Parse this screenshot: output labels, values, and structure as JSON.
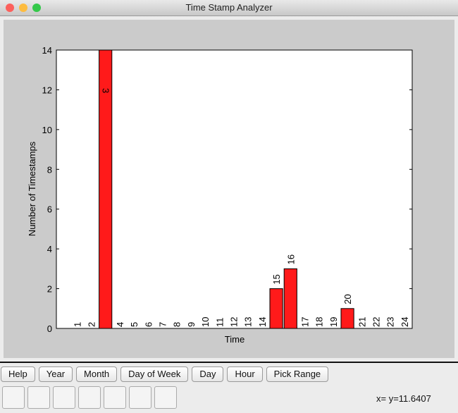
{
  "window": {
    "title": "Time Stamp Analyzer"
  },
  "chart_data": {
    "type": "bar",
    "xlabel": "Time",
    "ylabel": "Number of Timestamps",
    "x": [
      1,
      2,
      3,
      4,
      5,
      6,
      7,
      8,
      9,
      10,
      11,
      12,
      13,
      14,
      15,
      16,
      17,
      18,
      19,
      20,
      21,
      22,
      23,
      24
    ],
    "values": [
      0,
      0,
      14,
      0,
      0,
      0,
      0,
      0,
      0,
      0,
      0,
      0,
      0,
      0,
      2,
      3,
      0,
      0,
      0,
      1,
      0,
      0,
      0,
      0
    ],
    "color": "#ff1a1a",
    "xlim": [
      0,
      25
    ],
    "ylim": [
      0,
      14
    ],
    "yticks": [
      0,
      2,
      4,
      6,
      8,
      10,
      12,
      14
    ]
  },
  "buttons": [
    "Help",
    "Year",
    "Month",
    "Day of Week",
    "Day",
    "Hour",
    "Pick Range"
  ],
  "status": "x= y=11.6407"
}
